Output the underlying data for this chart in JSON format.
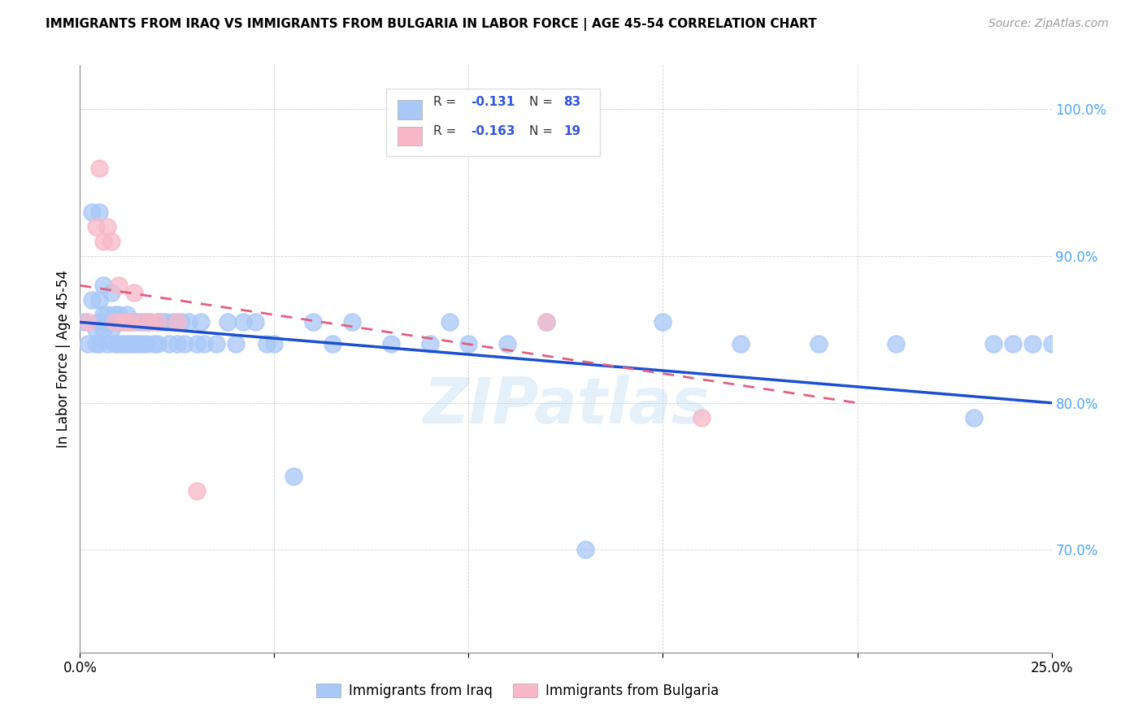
{
  "title": "IMMIGRANTS FROM IRAQ VS IMMIGRANTS FROM BULGARIA IN LABOR FORCE | AGE 45-54 CORRELATION CHART",
  "source": "Source: ZipAtlas.com",
  "ylabel": "In Labor Force | Age 45-54",
  "xlim": [
    0.0,
    0.25
  ],
  "ylim": [
    0.63,
    1.03
  ],
  "color_iraq": "#a8c8f8",
  "color_bulgaria": "#f8b8c8",
  "color_line_iraq": "#1a50d0",
  "color_line_bulgaria": "#e06080",
  "watermark": "ZIPatlas",
  "R_iraq": -0.131,
  "N_iraq": 83,
  "R_bulgaria": -0.163,
  "N_bulgaria": 19,
  "iraq_x": [
    0.001,
    0.002,
    0.003,
    0.003,
    0.004,
    0.004,
    0.005,
    0.005,
    0.005,
    0.005,
    0.006,
    0.006,
    0.006,
    0.007,
    0.007,
    0.007,
    0.008,
    0.008,
    0.008,
    0.009,
    0.009,
    0.009,
    0.01,
    0.01,
    0.01,
    0.011,
    0.011,
    0.012,
    0.012,
    0.012,
    0.013,
    0.013,
    0.013,
    0.014,
    0.014,
    0.015,
    0.015,
    0.016,
    0.016,
    0.017,
    0.017,
    0.018,
    0.019,
    0.02,
    0.02,
    0.021,
    0.022,
    0.023,
    0.024,
    0.025,
    0.026,
    0.027,
    0.028,
    0.03,
    0.031,
    0.032,
    0.035,
    0.038,
    0.04,
    0.042,
    0.045,
    0.048,
    0.05,
    0.055,
    0.06,
    0.065,
    0.07,
    0.08,
    0.09,
    0.095,
    0.1,
    0.11,
    0.12,
    0.13,
    0.15,
    0.17,
    0.19,
    0.21,
    0.23,
    0.235,
    0.24,
    0.245,
    0.25
  ],
  "iraq_y": [
    0.855,
    0.84,
    0.87,
    0.93,
    0.85,
    0.84,
    0.84,
    0.855,
    0.87,
    0.93,
    0.86,
    0.85,
    0.88,
    0.86,
    0.855,
    0.84,
    0.85,
    0.855,
    0.875,
    0.86,
    0.84,
    0.855,
    0.86,
    0.84,
    0.855,
    0.855,
    0.84,
    0.86,
    0.84,
    0.855,
    0.855,
    0.84,
    0.855,
    0.84,
    0.855,
    0.84,
    0.855,
    0.855,
    0.84,
    0.855,
    0.84,
    0.855,
    0.84,
    0.855,
    0.84,
    0.855,
    0.855,
    0.84,
    0.855,
    0.84,
    0.855,
    0.84,
    0.855,
    0.84,
    0.855,
    0.84,
    0.84,
    0.855,
    0.84,
    0.855,
    0.855,
    0.84,
    0.84,
    0.75,
    0.855,
    0.84,
    0.855,
    0.84,
    0.84,
    0.855,
    0.84,
    0.84,
    0.855,
    0.7,
    0.855,
    0.84,
    0.84,
    0.84,
    0.79,
    0.84,
    0.84,
    0.84,
    0.84
  ],
  "bulgaria_x": [
    0.002,
    0.004,
    0.005,
    0.006,
    0.007,
    0.008,
    0.009,
    0.01,
    0.011,
    0.012,
    0.013,
    0.014,
    0.016,
    0.018,
    0.02,
    0.025,
    0.03,
    0.12,
    0.16
  ],
  "bulgaria_y": [
    0.855,
    0.92,
    0.96,
    0.91,
    0.92,
    0.91,
    0.855,
    0.88,
    0.855,
    0.855,
    0.855,
    0.875,
    0.855,
    0.855,
    0.855,
    0.855,
    0.74,
    0.855,
    0.79
  ],
  "line_iraq_x0": 0.0,
  "line_iraq_x1": 0.25,
  "line_iraq_y0": 0.855,
  "line_iraq_y1": 0.8,
  "line_bulg_x0": 0.0,
  "line_bulg_x1": 0.2,
  "line_bulg_y0": 0.88,
  "line_bulg_y1": 0.8
}
